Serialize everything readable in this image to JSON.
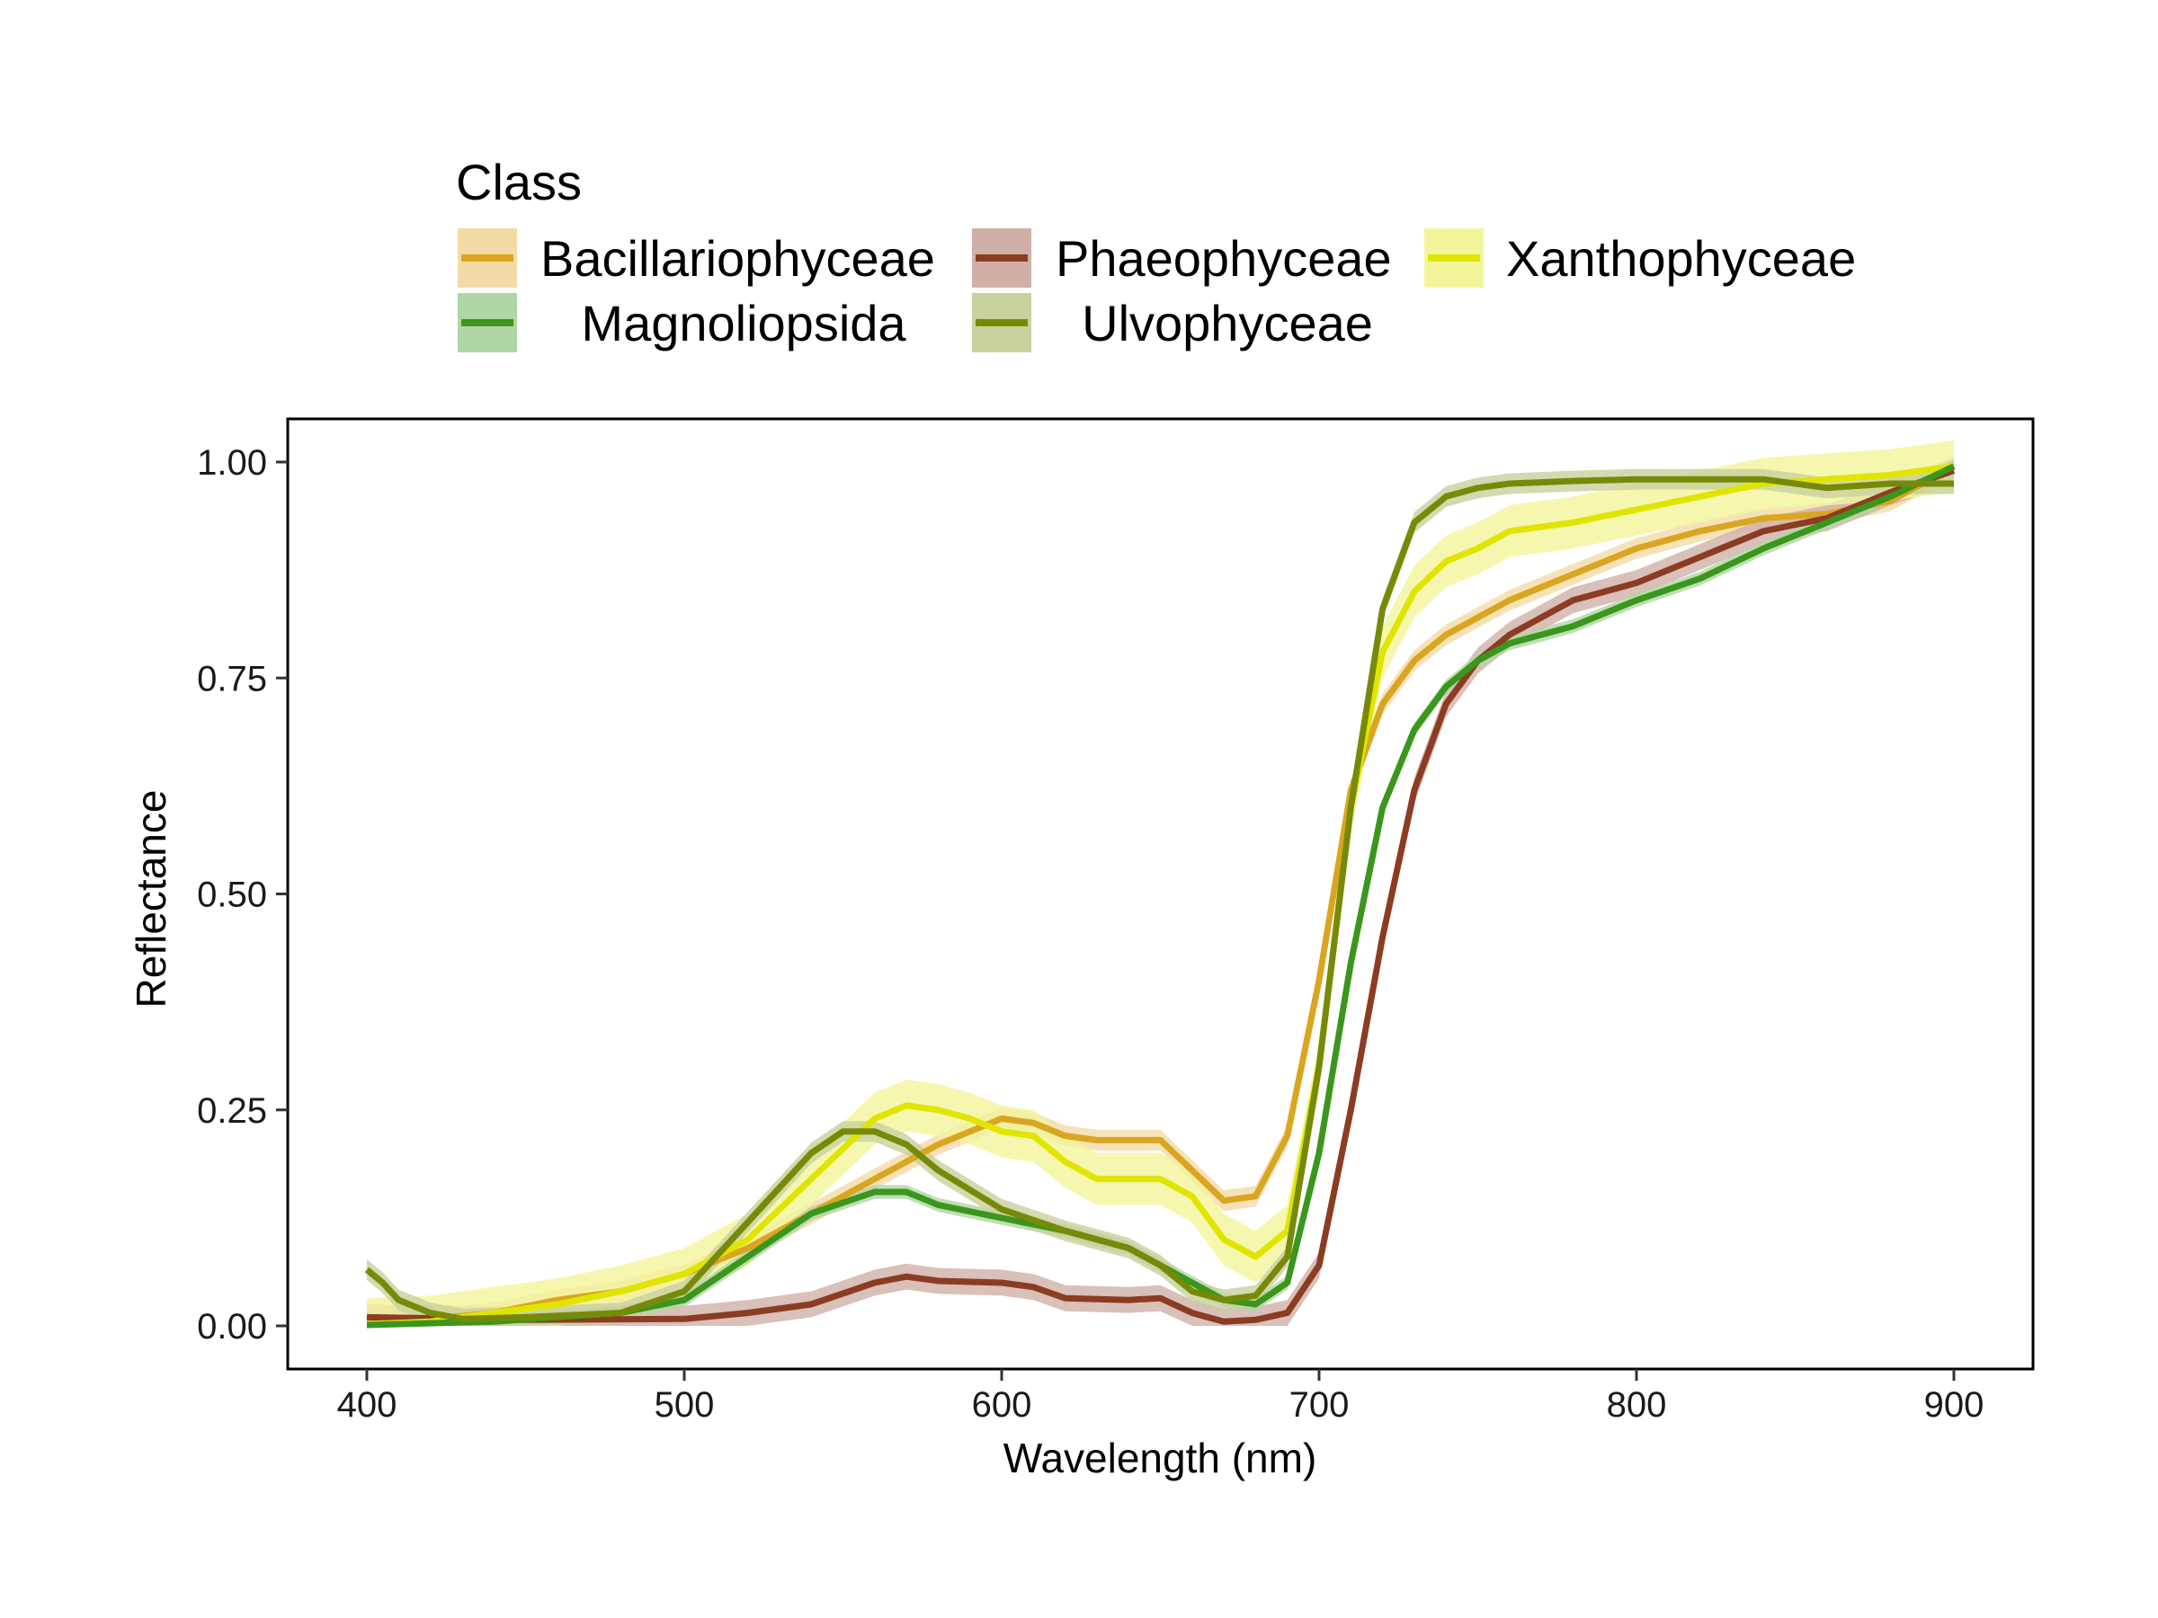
{
  "chart_data": {
    "type": "line",
    "xlabel": "Wavelength (nm)",
    "ylabel": "Reflectance",
    "xlim": [
      375,
      925
    ],
    "ylim": [
      -0.05,
      1.05
    ],
    "xticks": [
      400,
      500,
      600,
      700,
      800,
      900
    ],
    "xtick_labels": [
      "400",
      "500",
      "600",
      "700",
      "800",
      "900"
    ],
    "yticks": [
      0,
      0.25,
      0.5,
      0.75,
      1.0
    ],
    "ytick_labels": [
      "0.00",
      "0.25",
      "0.50",
      "0.75",
      "1.00"
    ],
    "grid": false,
    "legend": {
      "title": "Class",
      "position": "top"
    },
    "series": [
      {
        "name": "Bacillariophyceae",
        "color": "#DAA520",
        "fill": "#F2DBA6",
        "band": 0.012,
        "x": [
          400,
          420,
          440,
          460,
          480,
          500,
          520,
          540,
          560,
          570,
          580,
          600,
          610,
          620,
          630,
          640,
          650,
          660,
          670,
          680,
          690,
          700,
          710,
          720,
          730,
          740,
          750,
          760,
          780,
          800,
          820,
          840,
          860,
          880,
          900
        ],
        "y": [
          0.005,
          0.008,
          0.015,
          0.03,
          0.04,
          0.06,
          0.09,
          0.13,
          0.17,
          0.19,
          0.21,
          0.24,
          0.235,
          0.22,
          0.215,
          0.215,
          0.215,
          0.18,
          0.145,
          0.15,
          0.22,
          0.4,
          0.62,
          0.72,
          0.77,
          0.8,
          0.82,
          0.84,
          0.87,
          0.9,
          0.92,
          0.935,
          0.94,
          0.955,
          0.995
        ]
      },
      {
        "name": "Phaeophyceae",
        "color": "#8B3C22",
        "fill": "#D0B0A6",
        "band": 0.015,
        "x": [
          400,
          450,
          500,
          520,
          540,
          560,
          570,
          580,
          600,
          610,
          620,
          640,
          650,
          660,
          670,
          680,
          690,
          700,
          710,
          720,
          730,
          740,
          750,
          760,
          780,
          800,
          820,
          840,
          860,
          880,
          900
        ],
        "y": [
          0.01,
          0.007,
          0.008,
          0.015,
          0.025,
          0.05,
          0.057,
          0.052,
          0.05,
          0.045,
          0.032,
          0.03,
          0.032,
          0.015,
          0.005,
          0.007,
          0.015,
          0.07,
          0.25,
          0.45,
          0.62,
          0.72,
          0.77,
          0.8,
          0.84,
          0.86,
          0.89,
          0.92,
          0.935,
          0.965,
          0.99
        ]
      },
      {
        "name": "Xanthophyceae",
        "color": "#E0E500",
        "fill": "#F3F59B",
        "band": 0.03,
        "x": [
          400,
          420,
          440,
          460,
          480,
          500,
          520,
          540,
          560,
          570,
          580,
          590,
          600,
          610,
          620,
          630,
          650,
          660,
          670,
          680,
          690,
          700,
          710,
          720,
          730,
          740,
          750,
          760,
          780,
          800,
          820,
          840,
          860,
          880,
          900
        ],
        "y": [
          0.002,
          0.005,
          0.015,
          0.025,
          0.04,
          0.06,
          0.1,
          0.17,
          0.24,
          0.255,
          0.25,
          0.24,
          0.225,
          0.22,
          0.19,
          0.17,
          0.17,
          0.15,
          0.1,
          0.08,
          0.11,
          0.3,
          0.6,
          0.78,
          0.85,
          0.885,
          0.9,
          0.92,
          0.93,
          0.945,
          0.96,
          0.975,
          0.98,
          0.985,
          0.995
        ]
      },
      {
        "name": "Magnoliopsida",
        "color": "#3A961C",
        "fill": "#B0D6A4",
        "band": 0.008,
        "x": [
          400,
          440,
          480,
          500,
          520,
          540,
          560,
          570,
          580,
          600,
          620,
          640,
          650,
          660,
          670,
          680,
          690,
          700,
          710,
          720,
          730,
          740,
          750,
          760,
          780,
          800,
          820,
          840,
          860,
          880,
          900
        ],
        "y": [
          0.001,
          0.005,
          0.015,
          0.03,
          0.08,
          0.13,
          0.155,
          0.155,
          0.14,
          0.125,
          0.11,
          0.09,
          0.07,
          0.05,
          0.03,
          0.025,
          0.05,
          0.2,
          0.42,
          0.6,
          0.69,
          0.74,
          0.77,
          0.79,
          0.81,
          0.84,
          0.865,
          0.9,
          0.93,
          0.96,
          0.995
        ]
      },
      {
        "name": "Ulvophyceae",
        "color": "#778A08",
        "fill": "#C9D09E",
        "band": 0.012,
        "x": [
          400,
          405,
          410,
          420,
          430,
          450,
          480,
          500,
          520,
          540,
          550,
          560,
          570,
          580,
          600,
          620,
          640,
          650,
          660,
          670,
          680,
          690,
          700,
          710,
          720,
          730,
          740,
          750,
          760,
          780,
          800,
          820,
          840,
          860,
          880,
          900
        ],
        "y": [
          0.065,
          0.05,
          0.03,
          0.015,
          0.008,
          0.01,
          0.015,
          0.04,
          0.12,
          0.2,
          0.225,
          0.225,
          0.21,
          0.18,
          0.135,
          0.11,
          0.09,
          0.07,
          0.04,
          0.03,
          0.035,
          0.08,
          0.3,
          0.6,
          0.83,
          0.93,
          0.96,
          0.97,
          0.975,
          0.978,
          0.98,
          0.98,
          0.98,
          0.97,
          0.975,
          0.975
        ]
      }
    ],
    "legend_order": [
      "Bacillariophyceae",
      "Phaeophyceae",
      "Xanthophyceae",
      "Magnoliopsida",
      "Ulvophyceae"
    ]
  }
}
